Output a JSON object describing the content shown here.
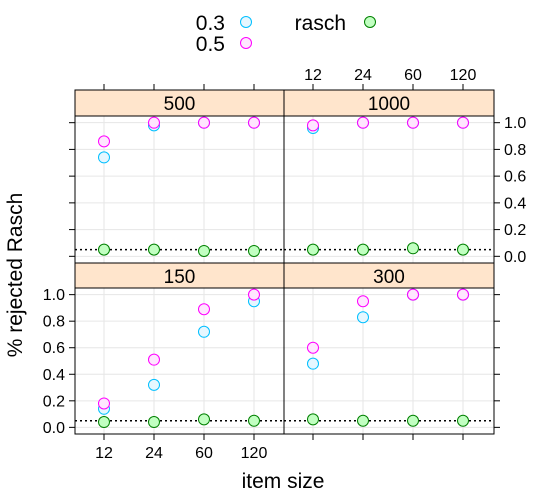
{
  "chart_data": {
    "type": "scatter",
    "xlabel": "item size",
    "ylabel": "% rejected Rasch",
    "x_ticks": [
      "12",
      "24",
      "60",
      "120"
    ],
    "y_ticks": [
      "0.0",
      "0.2",
      "0.4",
      "0.6",
      "0.8",
      "1.0"
    ],
    "ylim": [
      -0.05,
      1.05
    ],
    "reference_line": 0.05,
    "grid": true,
    "legend": {
      "placement": "top",
      "entries": [
        {
          "name": "0.3",
          "fill": "#e6f7ff",
          "stroke": "#00bfff"
        },
        {
          "name": "0.5",
          "fill": "#ffe6ff",
          "stroke": "#ff00ff"
        },
        {
          "name": "rasch",
          "fill": "#c1ffc1",
          "stroke": "#008000"
        }
      ]
    },
    "panels": [
      {
        "label": "500",
        "series": [
          {
            "name": "0.3",
            "values": [
              0.74,
              0.98,
              1.0,
              1.0
            ]
          },
          {
            "name": "0.5",
            "values": [
              0.86,
              1.0,
              1.0,
              1.0
            ]
          },
          {
            "name": "rasch",
            "values": [
              0.05,
              0.05,
              0.04,
              0.04
            ]
          }
        ]
      },
      {
        "label": "1000",
        "series": [
          {
            "name": "0.3",
            "values": [
              0.96,
              1.0,
              1.0,
              1.0
            ]
          },
          {
            "name": "0.5",
            "values": [
              0.98,
              1.0,
              1.0,
              1.0
            ]
          },
          {
            "name": "rasch",
            "values": [
              0.05,
              0.05,
              0.06,
              0.05
            ]
          }
        ]
      },
      {
        "label": "150",
        "series": [
          {
            "name": "0.3",
            "values": [
              0.14,
              0.32,
              0.72,
              0.95
            ]
          },
          {
            "name": "0.5",
            "values": [
              0.18,
              0.51,
              0.89,
              1.0
            ]
          },
          {
            "name": "rasch",
            "values": [
              0.04,
              0.04,
              0.06,
              0.05
            ]
          }
        ]
      },
      {
        "label": "300",
        "series": [
          {
            "name": "0.3",
            "values": [
              0.48,
              0.83,
              1.0,
              1.0
            ]
          },
          {
            "name": "0.5",
            "values": [
              0.6,
              0.95,
              1.0,
              1.0
            ]
          },
          {
            "name": "rasch",
            "values": [
              0.06,
              0.05,
              0.05,
              0.05
            ]
          }
        ]
      }
    ]
  }
}
